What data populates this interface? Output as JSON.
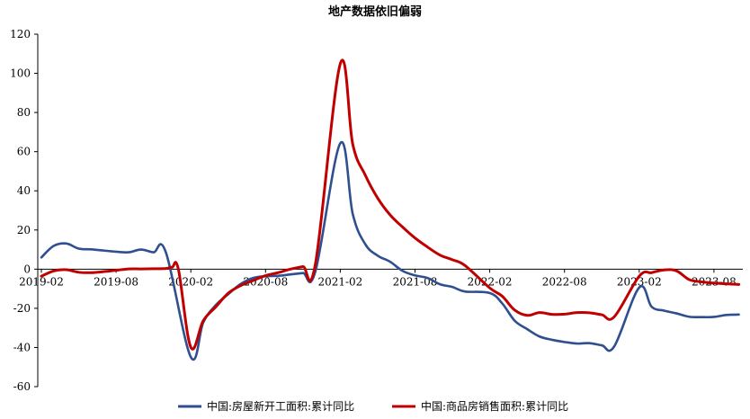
{
  "chart_data": {
    "type": "line",
    "title": "地产数据依旧偏弱",
    "xlabel": "",
    "ylabel": "",
    "ylim": [
      -60,
      120
    ],
    "yticks": [
      120,
      100,
      80,
      60,
      40,
      20,
      0,
      -20,
      -40,
      -60
    ],
    "xticks": [
      "2019-02",
      "2019-08",
      "2020-02",
      "2020-08",
      "2021-02",
      "2021-08",
      "2022-02",
      "2022-08",
      "2023-02",
      "2023-08"
    ],
    "grid": false,
    "legend_position": "bottom",
    "series": [
      {
        "name": "中国:房屋新开工面积:累计同比",
        "color": "#2f4f8f",
        "points": [
          [
            "2019-02",
            6.0
          ],
          [
            "2019-03",
            11.9
          ],
          [
            "2019-04",
            13.1
          ],
          [
            "2019-05",
            10.5
          ],
          [
            "2019-06",
            10.1
          ],
          [
            "2019-07",
            9.5
          ],
          [
            "2019-08",
            8.9
          ],
          [
            "2019-09",
            8.6
          ],
          [
            "2019-10",
            10.0
          ],
          [
            "2019-11",
            8.6
          ],
          [
            "2019-12",
            8.5
          ],
          [
            "2020-02",
            -44.9
          ],
          [
            "2020-03",
            -27.2
          ],
          [
            "2020-04",
            -18.4
          ],
          [
            "2020-05",
            -12.8
          ],
          [
            "2020-06",
            -7.6
          ],
          [
            "2020-07",
            -4.5
          ],
          [
            "2020-08",
            -3.6
          ],
          [
            "2020-09",
            -3.4
          ],
          [
            "2020-10",
            -2.7
          ],
          [
            "2020-11",
            -2.0
          ],
          [
            "2020-12",
            -1.2
          ],
          [
            "2021-02",
            64.3
          ],
          [
            "2021-03",
            28.2
          ],
          [
            "2021-04",
            12.8
          ],
          [
            "2021-05",
            6.9
          ],
          [
            "2021-06",
            3.8
          ],
          [
            "2021-07",
            -0.9
          ],
          [
            "2021-08",
            -3.2
          ],
          [
            "2021-09",
            -4.5
          ],
          [
            "2021-10",
            -7.7
          ],
          [
            "2021-11",
            -9.1
          ],
          [
            "2021-12",
            -11.4
          ],
          [
            "2022-02",
            -12.2
          ],
          [
            "2022-03",
            -17.5
          ],
          [
            "2022-04",
            -26.3
          ],
          [
            "2022-05",
            -30.6
          ],
          [
            "2022-06",
            -34.4
          ],
          [
            "2022-07",
            -36.1
          ],
          [
            "2022-08",
            -37.2
          ],
          [
            "2022-09",
            -38.0
          ],
          [
            "2022-10",
            -37.8
          ],
          [
            "2022-11",
            -38.9
          ],
          [
            "2022-12",
            -39.4
          ],
          [
            "2023-02",
            -9.4
          ],
          [
            "2023-03",
            -19.2
          ],
          [
            "2023-04",
            -21.2
          ],
          [
            "2023-05",
            -22.6
          ],
          [
            "2023-06",
            -24.3
          ],
          [
            "2023-07",
            -24.5
          ],
          [
            "2023-08",
            -24.4
          ],
          [
            "2023-09",
            -23.4
          ],
          [
            "2023-10",
            -23.2
          ]
        ]
      },
      {
        "name": "中国:商品房销售面积:累计同比",
        "color": "#c00000",
        "points": [
          [
            "2019-02",
            -3.6
          ],
          [
            "2019-03",
            -0.9
          ],
          [
            "2019-04",
            -0.3
          ],
          [
            "2019-05",
            -1.6
          ],
          [
            "2019-06",
            -1.8
          ],
          [
            "2019-07",
            -1.3
          ],
          [
            "2019-08",
            -0.6
          ],
          [
            "2019-09",
            0.1
          ],
          [
            "2019-10",
            0.1
          ],
          [
            "2019-11",
            0.2
          ],
          [
            "2019-12",
            0.3
          ],
          [
            "2019-12",
            1.0
          ],
          [
            "2020-01",
            0.0
          ],
          [
            "2020-02",
            -39.9
          ],
          [
            "2020-03",
            -26.3
          ],
          [
            "2020-04",
            -19.3
          ],
          [
            "2020-05",
            -12.3
          ],
          [
            "2020-06",
            -8.4
          ],
          [
            "2020-07",
            -5.8
          ],
          [
            "2020-08",
            -3.3
          ],
          [
            "2020-09",
            -1.8
          ],
          [
            "2020-10",
            0.0
          ],
          [
            "2020-11",
            1.3
          ],
          [
            "2020-12",
            2.6
          ],
          [
            "2021-02",
            104.9
          ],
          [
            "2021-03",
            63.8
          ],
          [
            "2021-04",
            48.1
          ],
          [
            "2021-05",
            36.3
          ],
          [
            "2021-06",
            27.7
          ],
          [
            "2021-07",
            21.5
          ],
          [
            "2021-08",
            15.9
          ],
          [
            "2021-09",
            11.3
          ],
          [
            "2021-10",
            7.2
          ],
          [
            "2021-11",
            4.8
          ],
          [
            "2021-12",
            1.9
          ],
          [
            "2022-02",
            -9.6
          ],
          [
            "2022-03",
            -13.8
          ],
          [
            "2022-04",
            -20.9
          ],
          [
            "2022-05",
            -23.6
          ],
          [
            "2022-06",
            -22.2
          ],
          [
            "2022-07",
            -23.1
          ],
          [
            "2022-08",
            -23.0
          ],
          [
            "2022-09",
            -22.2
          ],
          [
            "2022-10",
            -22.3
          ],
          [
            "2022-11",
            -23.3
          ],
          [
            "2022-12",
            -24.3
          ],
          [
            "2023-02",
            -3.6
          ],
          [
            "2023-03",
            -1.8
          ],
          [
            "2023-04",
            -0.4
          ],
          [
            "2023-05",
            -0.9
          ],
          [
            "2023-06",
            -5.3
          ],
          [
            "2023-07",
            -6.5
          ],
          [
            "2023-08",
            -7.1
          ],
          [
            "2023-09",
            -7.5
          ],
          [
            "2023-10",
            -7.8
          ]
        ]
      }
    ]
  }
}
